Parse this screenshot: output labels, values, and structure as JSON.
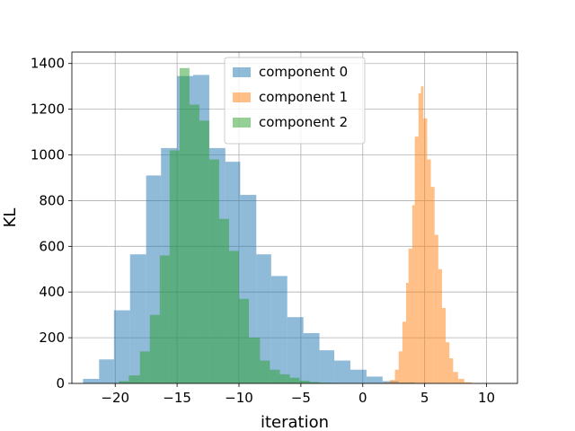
{
  "chart_data": {
    "type": "histogram",
    "xlabel": "iteration",
    "ylabel": "KL",
    "xlim": [
      -23.5,
      12.5
    ],
    "ylim": [
      0,
      1450
    ],
    "xticks": [
      -20,
      -15,
      -10,
      -5,
      0,
      5,
      10
    ],
    "xtick_labels": [
      "−20",
      "−15",
      "−10",
      "−5",
      "0",
      "5",
      "10"
    ],
    "yticks": [
      0,
      200,
      400,
      600,
      800,
      1000,
      1200,
      1400
    ],
    "ytick_labels": [
      "0",
      "200",
      "400",
      "600",
      "800",
      "1000",
      "1200",
      "1400"
    ],
    "grid": true,
    "legend_position": "top-center",
    "series": [
      {
        "name": "component 0",
        "color": "#1f77b4",
        "opacity": 0.5,
        "bins": [
          {
            "x0": -22.6,
            "x1": -21.3,
            "count": 20
          },
          {
            "x0": -21.3,
            "x1": -20.1,
            "count": 105
          },
          {
            "x0": -20.1,
            "x1": -18.8,
            "count": 320
          },
          {
            "x0": -18.8,
            "x1": -17.5,
            "count": 565
          },
          {
            "x0": -17.5,
            "x1": -16.3,
            "count": 910
          },
          {
            "x0": -16.3,
            "x1": -15.0,
            "count": 1030
          },
          {
            "x0": -15.0,
            "x1": -13.7,
            "count": 1345
          },
          {
            "x0": -13.7,
            "x1": -12.4,
            "count": 1350
          },
          {
            "x0": -12.4,
            "x1": -11.1,
            "count": 1030
          },
          {
            "x0": -11.1,
            "x1": -9.9,
            "count": 970
          },
          {
            "x0": -9.9,
            "x1": -8.6,
            "count": 825
          },
          {
            "x0": -8.6,
            "x1": -7.4,
            "count": 565
          },
          {
            "x0": -7.4,
            "x1": -6.1,
            "count": 470
          },
          {
            "x0": -6.1,
            "x1": -4.8,
            "count": 290
          },
          {
            "x0": -4.8,
            "x1": -3.5,
            "count": 220
          },
          {
            "x0": -3.5,
            "x1": -2.3,
            "count": 145
          },
          {
            "x0": -2.3,
            "x1": -1.0,
            "count": 100
          },
          {
            "x0": -1.0,
            "x1": 0.3,
            "count": 60
          },
          {
            "x0": 0.3,
            "x1": 1.6,
            "count": 30
          },
          {
            "x0": 1.6,
            "x1": 2.9,
            "count": 10
          },
          {
            "x0": 2.9,
            "x1": 4.2,
            "count": 4
          },
          {
            "x0": 4.2,
            "x1": 5.5,
            "count": 2
          }
        ]
      },
      {
        "name": "component 1",
        "color": "#ff7f0e",
        "opacity": 0.5,
        "bins": [
          {
            "x0": 1.7,
            "x1": 2.2,
            "count": 5
          },
          {
            "x0": 2.2,
            "x1": 2.6,
            "count": 15
          },
          {
            "x0": 2.6,
            "x1": 2.9,
            "count": 60
          },
          {
            "x0": 2.9,
            "x1": 3.2,
            "count": 140
          },
          {
            "x0": 3.2,
            "x1": 3.5,
            "count": 270
          },
          {
            "x0": 3.5,
            "x1": 3.7,
            "count": 440
          },
          {
            "x0": 3.7,
            "x1": 4.0,
            "count": 590
          },
          {
            "x0": 4.0,
            "x1": 4.2,
            "count": 780
          },
          {
            "x0": 4.2,
            "x1": 4.5,
            "count": 1080
          },
          {
            "x0": 4.5,
            "x1": 4.7,
            "count": 1270
          },
          {
            "x0": 4.7,
            "x1": 4.9,
            "count": 1300
          },
          {
            "x0": 4.9,
            "x1": 5.2,
            "count": 1160
          },
          {
            "x0": 5.2,
            "x1": 5.5,
            "count": 980
          },
          {
            "x0": 5.5,
            "x1": 5.8,
            "count": 860
          },
          {
            "x0": 5.8,
            "x1": 6.1,
            "count": 650
          },
          {
            "x0": 6.1,
            "x1": 6.4,
            "count": 500
          },
          {
            "x0": 6.4,
            "x1": 6.7,
            "count": 330
          },
          {
            "x0": 6.7,
            "x1": 7.0,
            "count": 180
          },
          {
            "x0": 7.0,
            "x1": 7.3,
            "count": 110
          },
          {
            "x0": 7.3,
            "x1": 7.7,
            "count": 50
          },
          {
            "x0": 7.7,
            "x1": 8.2,
            "count": 20
          },
          {
            "x0": 8.2,
            "x1": 8.8,
            "count": 5
          }
        ]
      },
      {
        "name": "component 2",
        "color": "#2ca02c",
        "opacity": 0.5,
        "bins": [
          {
            "x0": -19.7,
            "x1": -18.9,
            "count": 10
          },
          {
            "x0": -18.9,
            "x1": -18.0,
            "count": 35
          },
          {
            "x0": -18.0,
            "x1": -17.2,
            "count": 140
          },
          {
            "x0": -17.2,
            "x1": -16.4,
            "count": 300
          },
          {
            "x0": -16.4,
            "x1": -15.6,
            "count": 560
          },
          {
            "x0": -15.6,
            "x1": -14.8,
            "count": 1020
          },
          {
            "x0": -14.8,
            "x1": -14.0,
            "count": 1380
          },
          {
            "x0": -14.0,
            "x1": -13.2,
            "count": 1220
          },
          {
            "x0": -13.2,
            "x1": -12.4,
            "count": 1150
          },
          {
            "x0": -12.4,
            "x1": -11.6,
            "count": 980
          },
          {
            "x0": -11.6,
            "x1": -10.8,
            "count": 720
          },
          {
            "x0": -10.8,
            "x1": -10.0,
            "count": 580
          },
          {
            "x0": -10.0,
            "x1": -9.2,
            "count": 370
          },
          {
            "x0": -9.2,
            "x1": -8.3,
            "count": 200
          },
          {
            "x0": -8.3,
            "x1": -7.5,
            "count": 100
          },
          {
            "x0": -7.5,
            "x1": -6.7,
            "count": 60
          },
          {
            "x0": -6.7,
            "x1": -5.9,
            "count": 40
          },
          {
            "x0": -5.9,
            "x1": -5.1,
            "count": 25
          },
          {
            "x0": -5.1,
            "x1": -4.3,
            "count": 12
          },
          {
            "x0": -4.3,
            "x1": -3.5,
            "count": 6
          },
          {
            "x0": -3.5,
            "x1": -2.7,
            "count": 3
          },
          {
            "x0": -2.7,
            "x1": -1.9,
            "count": 2
          }
        ]
      }
    ]
  }
}
